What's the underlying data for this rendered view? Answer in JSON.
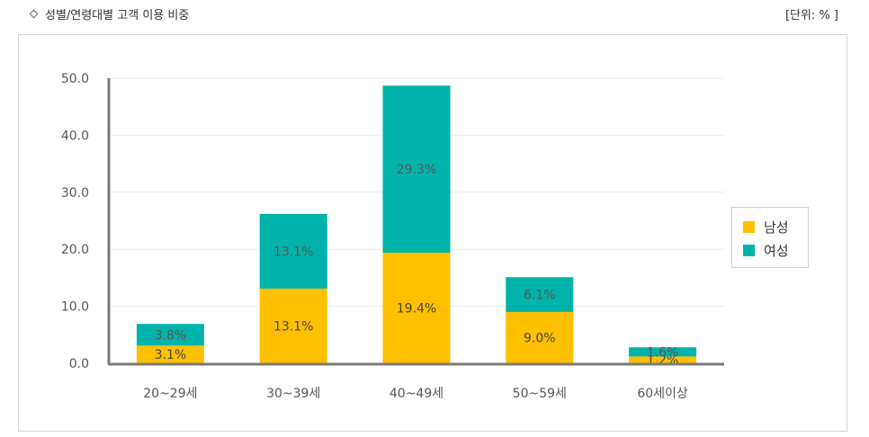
{
  "header": {
    "title": "성별/연령대별 고객 이용 비중",
    "unit": "[단위: % ]"
  },
  "chart_data": {
    "type": "bar",
    "stacked": true,
    "categories": [
      "20~29세",
      "30~39세",
      "40~49세",
      "50~59세",
      "60세이상"
    ],
    "series": [
      {
        "name": "남성",
        "color": "#FFC000",
        "values": [
          3.1,
          13.1,
          19.4,
          9.0,
          1.2
        ],
        "labels": [
          "3.1%",
          "13.1%",
          "19.4%",
          "9.0%",
          "1.2%"
        ]
      },
      {
        "name": "여성",
        "color": "#00B3AA",
        "values": [
          3.8,
          13.1,
          29.3,
          6.1,
          1.6
        ],
        "labels": [
          "3.8%",
          "13.1%",
          "29.3%",
          "6.1%",
          "1.6%"
        ]
      }
    ],
    "yticks": [
      "0.0",
      "10.0",
      "20.0",
      "30.0",
      "40.0",
      "50.0"
    ],
    "ylim": [
      0,
      50
    ],
    "grid": true,
    "legend_position": "right"
  }
}
